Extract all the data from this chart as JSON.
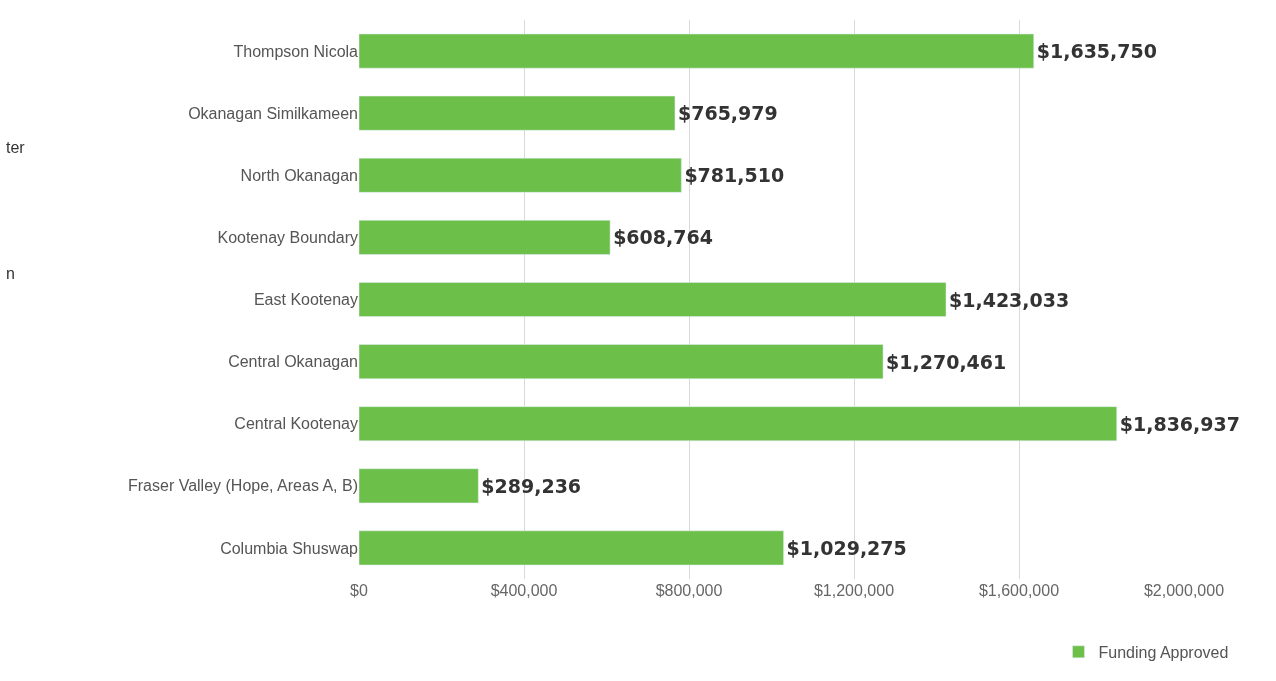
{
  "chart_data": {
    "type": "bar",
    "orientation": "horizontal",
    "categories": [
      "Thompson Nicola",
      "Okanagan Similkameen",
      "North Okanagan",
      "Kootenay Boundary",
      "East Kootenay",
      "Central Okanagan",
      "Central Kootenay",
      "Fraser Valley (Hope, Areas A, B)",
      "Columbia Shuswap"
    ],
    "series": [
      {
        "name": "Funding Approved",
        "color": "#6cc04a",
        "values": [
          1635750,
          765979,
          781510,
          608764,
          1423033,
          1270461,
          1836937,
          289236,
          1029275
        ],
        "value_labels": [
          "$1,635,750",
          "$765,979",
          "$781,510",
          "$608,764",
          "$1,423,033",
          "$1,270,461",
          "$1,836,937",
          "$289,236",
          "$1,029,275"
        ]
      }
    ],
    "xlim": [
      0,
      2000000
    ],
    "xticks": [
      {
        "value": 0,
        "label": "$0"
      },
      {
        "value": 400000,
        "label": "$400,000"
      },
      {
        "value": 800000,
        "label": "$800,000"
      },
      {
        "value": 1200000,
        "label": "$1,200,000"
      },
      {
        "value": 1600000,
        "label": "$1,600,000"
      },
      {
        "value": 2000000,
        "label": "$2,000,000"
      }
    ],
    "grid": "x",
    "legend": "bottom right",
    "annotations": [
      "ter",
      "n"
    ]
  }
}
